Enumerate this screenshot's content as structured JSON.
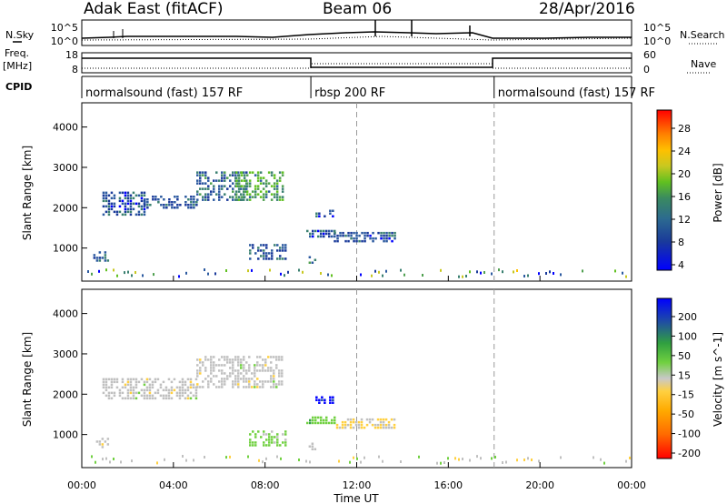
{
  "header": {
    "station": "Adak East (fitACF)",
    "beam": "Beam 06",
    "date": "28/Apr/2016"
  },
  "strip_labels": {
    "nsky": "N.Sky",
    "nsearch": "N.Search",
    "freq_line1": "Freq.",
    "freq_line2": "[MHz]",
    "nave": "Nave",
    "cpid": "CPID"
  },
  "strip_ticks": {
    "noise_left": [
      "10^5",
      "10^0"
    ],
    "noise_right": [
      "10^5",
      "10^0"
    ],
    "freq_left": [
      "18",
      "8"
    ],
    "freq_right": [
      "60",
      "0"
    ]
  },
  "cpid_segments": [
    {
      "label": "normalsound (fast) 157 RF",
      "start": 0,
      "end": 10
    },
    {
      "label": "rbsp 200 RF",
      "start": 10,
      "end": 18
    },
    {
      "label": "normalsound (fast) 157 RF",
      "start": 18,
      "end": 24
    }
  ],
  "colors": {
    "power_scale": [
      "#0000ff",
      "#1a3a9a",
      "#2c5aa0",
      "#3a8070",
      "#50a050",
      "#60c020",
      "#c8c820",
      "#ffc000",
      "#ff8000",
      "#ff4000",
      "#ff0000"
    ],
    "velocity_scale": [
      "#ff0000",
      "#ff6a00",
      "#ffaa00",
      "#ffd040",
      "#c0c0c0",
      "#70d040",
      "#30a040",
      "#2050a0",
      "#0000ff"
    ]
  },
  "chart_data": [
    {
      "type": "heatmap",
      "panel": "power",
      "xlabel": "",
      "ylabel": "Slant Range [km]",
      "xlim": [
        0,
        24
      ],
      "ylim": [
        180,
        4600
      ],
      "yticks": [
        1000,
        2000,
        3000,
        4000
      ],
      "colorbar": {
        "label": "Power [dB]",
        "ticks": [
          "28",
          "24",
          "20",
          "16",
          "12",
          "8",
          "4"
        ],
        "range": [
          0,
          30
        ]
      },
      "regions": [
        {
          "x": [
            0.9,
            2.7
          ],
          "y": [
            1850,
            2400
          ],
          "value": 6
        },
        {
          "x": [
            2.7,
            5.0
          ],
          "y": [
            2000,
            2300
          ],
          "value": 7
        },
        {
          "x": [
            5.0,
            7.2
          ],
          "y": [
            2200,
            2900
          ],
          "value": 8
        },
        {
          "x": [
            6.7,
            8.8
          ],
          "y": [
            2200,
            2900
          ],
          "value": 12
        },
        {
          "x": [
            0.5,
            1.2
          ],
          "y": [
            680,
            920
          ],
          "value": 6
        },
        {
          "x": [
            7.3,
            8.9
          ],
          "y": [
            700,
            1100
          ],
          "value": 7
        },
        {
          "x": [
            9.8,
            11.0
          ],
          "y": [
            1250,
            1450
          ],
          "value": 6
        },
        {
          "x": [
            11.0,
            13.7
          ],
          "y": [
            1150,
            1400
          ],
          "value": 6
        },
        {
          "x": [
            10.2,
            11.0
          ],
          "y": [
            1800,
            1950
          ],
          "value": 6
        },
        {
          "x": [
            9.9,
            10.2
          ],
          "y": [
            600,
            800
          ],
          "value": 10
        }
      ]
    },
    {
      "type": "heatmap",
      "panel": "velocity",
      "xlabel": "Time UT",
      "ylabel": "Slant Range [km]",
      "xlim": [
        0,
        24
      ],
      "ylim": [
        180,
        4600
      ],
      "xticks": [
        "00:00",
        "04:00",
        "08:00",
        "12:00",
        "16:00",
        "20:00",
        "00:00"
      ],
      "yticks": [
        1000,
        2000,
        3000,
        4000
      ],
      "colorbar": {
        "label": "Velocity [m s^-1]",
        "ticks": [
          "200",
          "100",
          "50",
          "15",
          "-15",
          "-50",
          "-100",
          "-200"
        ],
        "range": [
          -250,
          250
        ]
      },
      "regions": [
        {
          "x": [
            0.9,
            5.0
          ],
          "y": [
            1900,
            2400
          ],
          "value": 0
        },
        {
          "x": [
            5.0,
            8.8
          ],
          "y": [
            2200,
            2950
          ],
          "value": 0
        },
        {
          "x": [
            7.3,
            8.9
          ],
          "y": [
            700,
            1100
          ],
          "value": 50
        },
        {
          "x": [
            10.2,
            11.0
          ],
          "y": [
            1800,
            1950
          ],
          "value": 220
        },
        {
          "x": [
            9.8,
            11.1
          ],
          "y": [
            1250,
            1450
          ],
          "value": 60
        },
        {
          "x": [
            11.1,
            13.7
          ],
          "y": [
            1150,
            1400
          ],
          "value": -30
        },
        {
          "x": [
            0.5,
            1.2
          ],
          "y": [
            680,
            920
          ],
          "value": 0
        },
        {
          "x": [
            9.9,
            10.2
          ],
          "y": [
            600,
            800
          ],
          "value": 0
        }
      ]
    }
  ]
}
